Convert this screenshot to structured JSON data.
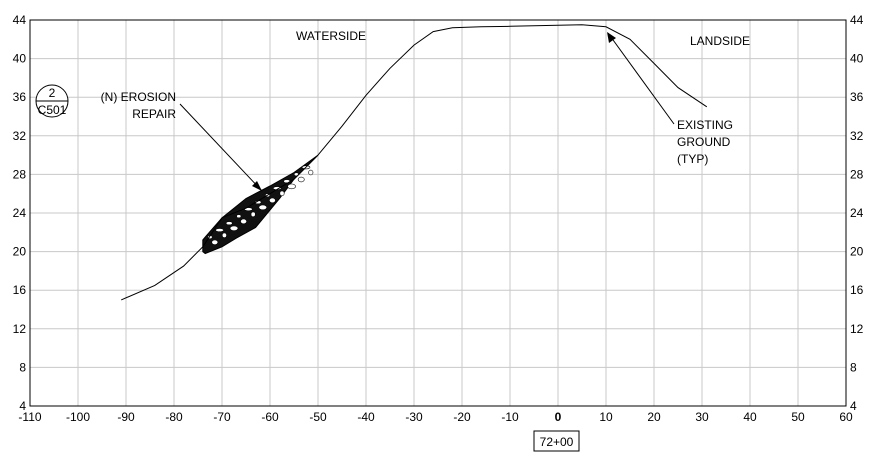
{
  "chart_data": {
    "type": "line",
    "title": "",
    "xlabel": "",
    "ylabel": "",
    "xlim": [
      -110,
      60
    ],
    "ylim": [
      4,
      44
    ],
    "x_ticks": [
      -110,
      -100,
      -90,
      -80,
      -70,
      -60,
      -50,
      -40,
      -30,
      -20,
      -10,
      0,
      10,
      20,
      30,
      40,
      50,
      60
    ],
    "y_ticks": [
      4,
      8,
      12,
      16,
      20,
      24,
      28,
      32,
      36,
      40,
      44
    ],
    "grid": true,
    "series": [
      {
        "x": [
          -91,
          -84,
          -78,
          -74,
          -72,
          -70,
          -65,
          -60,
          -55,
          -50,
          -45,
          -40,
          -35,
          -30,
          -26,
          -22,
          -16,
          -10,
          -5,
          0,
          5,
          10,
          15,
          20,
          25,
          31
        ],
        "y": [
          15,
          16.5,
          18.5,
          20.5,
          22,
          23.5,
          24.5,
          26,
          27.5,
          30,
          33,
          36.2,
          39,
          41.4,
          42.8,
          43.2,
          43.3,
          43.35,
          43.4,
          43.45,
          43.5,
          43.3,
          42,
          39.5,
          37,
          35
        ]
      }
    ],
    "repair_area": {
      "label": "(N) EROSION REPAIR",
      "outline": [
        [
          -74,
          21.2
        ],
        [
          -73.5,
          21.5
        ],
        [
          -70,
          23.5
        ],
        [
          -65,
          25.5
        ],
        [
          -60,
          26.8
        ],
        [
          -55,
          28.2
        ],
        [
          -50,
          30
        ],
        [
          -55,
          27.5
        ],
        [
          -58,
          25.5
        ],
        [
          -63,
          22.5
        ],
        [
          -67,
          21.4
        ],
        [
          -70,
          20.5
        ],
        [
          -73.5,
          19.8
        ],
        [
          -74,
          20
        ]
      ]
    },
    "annotations": {
      "waterside": "WATERSIDE",
      "landside": "LANDSIDE",
      "erosion_line1": "(N) EROSION",
      "erosion_line2": "REPAIR",
      "existing_line1": "EXISTING",
      "existing_line2": "GROUND",
      "existing_line3": "(TYP)",
      "station": "72+00"
    },
    "callout": {
      "detail_number": "2",
      "sheet": "C501"
    }
  }
}
